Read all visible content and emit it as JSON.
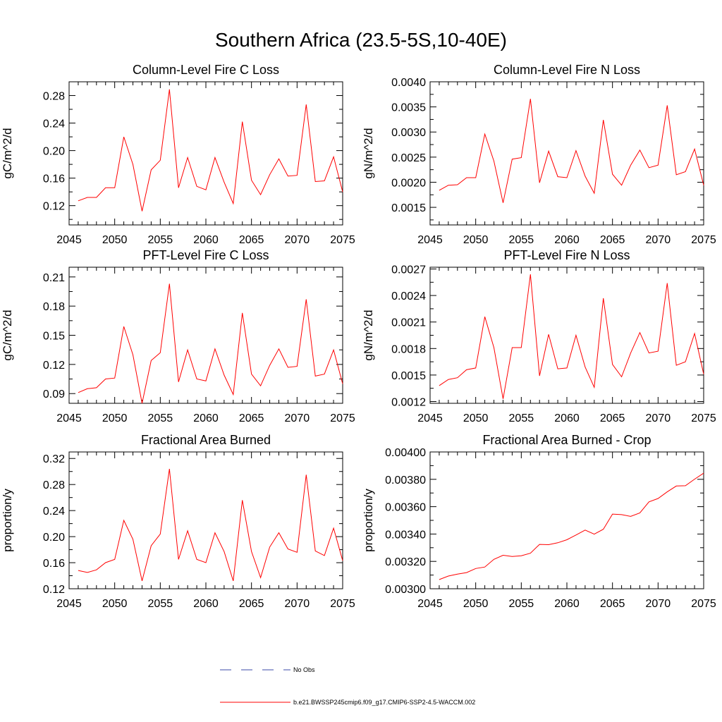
{
  "figure_title": "Southern Africa (23.5-5S,10-40E)",
  "colors": {
    "model": "#ff0000",
    "obs": "#3b4aa8",
    "axis": "#000000"
  },
  "legend": {
    "entries": [
      {
        "label": "No Obs",
        "style": "dashed",
        "color": "#3b4aa8"
      },
      {
        "label": "b.e21.BWSSP245cmip6.f09_g17.CMIP6-SSP2-4.5-WACCM.002",
        "style": "solid",
        "color": "#ff0000"
      }
    ]
  },
  "chart_data": [
    {
      "type": "line",
      "title": "Column-Level Fire C Loss",
      "xlabel": "",
      "ylabel": "gC/m^2/d",
      "xlim": [
        2045,
        2075
      ],
      "ylim": [
        0.092,
        0.3
      ],
      "xticks": [
        "2045",
        "2050",
        "2055",
        "2060",
        "2065",
        "2070",
        "2075"
      ],
      "yticks": [
        "0.12",
        "0.16",
        "0.20",
        "0.24",
        "0.28"
      ],
      "x": [
        2046,
        2047,
        2048,
        2049,
        2050,
        2051,
        2052,
        2053,
        2054,
        2055,
        2056,
        2057,
        2058,
        2059,
        2060,
        2061,
        2062,
        2063,
        2064,
        2065,
        2066,
        2067,
        2068,
        2069,
        2070,
        2071,
        2072,
        2073,
        2074,
        2075
      ],
      "series": [
        {
          "values": [
            0.127,
            0.132,
            0.132,
            0.146,
            0.146,
            0.22,
            0.18,
            0.112,
            0.172,
            0.186,
            0.289,
            0.146,
            0.19,
            0.148,
            0.143,
            0.19,
            0.154,
            0.123,
            0.242,
            0.157,
            0.136,
            0.165,
            0.188,
            0.163,
            0.164,
            0.267,
            0.155,
            0.156,
            0.191,
            0.14
          ]
        }
      ]
    },
    {
      "type": "line",
      "title": "Column-Level Fire N Loss",
      "xlabel": "",
      "ylabel": "gN/m^2/d",
      "xlim": [
        2045,
        2075
      ],
      "ylim": [
        0.00115,
        0.004
      ],
      "xticks": [
        "2045",
        "2050",
        "2055",
        "2060",
        "2065",
        "2070",
        "2075"
      ],
      "yticks": [
        "0.0015",
        "0.0020",
        "0.0025",
        "0.0030",
        "0.0035",
        "0.0040"
      ],
      "x": [
        2046,
        2047,
        2048,
        2049,
        2050,
        2051,
        2052,
        2053,
        2054,
        2055,
        2056,
        2057,
        2058,
        2059,
        2060,
        2061,
        2062,
        2063,
        2064,
        2065,
        2066,
        2067,
        2068,
        2069,
        2070,
        2071,
        2072,
        2073,
        2074,
        2075
      ],
      "series": [
        {
          "values": [
            0.00184,
            0.00194,
            0.00195,
            0.00209,
            0.00209,
            0.00296,
            0.00242,
            0.00159,
            0.00246,
            0.00249,
            0.00366,
            0.00199,
            0.00262,
            0.00211,
            0.00209,
            0.00263,
            0.00212,
            0.00178,
            0.00324,
            0.00216,
            0.00194,
            0.00234,
            0.00264,
            0.00229,
            0.00234,
            0.00353,
            0.00215,
            0.00221,
            0.00266,
            0.00194
          ]
        }
      ]
    },
    {
      "type": "line",
      "title": "PFT-Level Fire C Loss",
      "xlabel": "",
      "ylabel": "gC/m^2/d",
      "xlim": [
        2045,
        2075
      ],
      "ylim": [
        0.08,
        0.22
      ],
      "xticks": [
        "2045",
        "2050",
        "2055",
        "2060",
        "2065",
        "2070",
        "2075"
      ],
      "yticks": [
        "0.09",
        "0.12",
        "0.15",
        "0.18",
        "0.21"
      ],
      "x": [
        2046,
        2047,
        2048,
        2049,
        2050,
        2051,
        2052,
        2053,
        2054,
        2055,
        2056,
        2057,
        2058,
        2059,
        2060,
        2061,
        2062,
        2063,
        2064,
        2065,
        2066,
        2067,
        2068,
        2069,
        2070,
        2071,
        2072,
        2073,
        2074,
        2075
      ],
      "series": [
        {
          "values": [
            0.091,
            0.095,
            0.096,
            0.105,
            0.106,
            0.159,
            0.13,
            0.08,
            0.124,
            0.132,
            0.203,
            0.102,
            0.135,
            0.105,
            0.103,
            0.136,
            0.109,
            0.089,
            0.173,
            0.11,
            0.098,
            0.119,
            0.136,
            0.117,
            0.118,
            0.187,
            0.108,
            0.11,
            0.135,
            0.1
          ]
        }
      ]
    },
    {
      "type": "line",
      "title": "PFT-Level Fire N Loss",
      "xlabel": "",
      "ylabel": "gN/m^2/d",
      "xlim": [
        2045,
        2075
      ],
      "ylim": [
        0.00118,
        0.00272
      ],
      "xticks": [
        "2045",
        "2050",
        "2055",
        "2060",
        "2065",
        "2070",
        "2075"
      ],
      "yticks": [
        "0.0012",
        "0.0015",
        "0.0018",
        "0.0021",
        "0.0024",
        "0.0027"
      ],
      "x": [
        2046,
        2047,
        2048,
        2049,
        2050,
        2051,
        2052,
        2053,
        2054,
        2055,
        2056,
        2057,
        2058,
        2059,
        2060,
        2061,
        2062,
        2063,
        2064,
        2065,
        2066,
        2067,
        2068,
        2069,
        2070,
        2071,
        2072,
        2073,
        2074,
        2075
      ],
      "series": [
        {
          "values": [
            0.00138,
            0.00145,
            0.00147,
            0.00156,
            0.00158,
            0.00216,
            0.00181,
            0.00123,
            0.00181,
            0.00181,
            0.00264,
            0.00149,
            0.00196,
            0.00157,
            0.00158,
            0.00195,
            0.00159,
            0.00136,
            0.00237,
            0.00162,
            0.00148,
            0.00175,
            0.00198,
            0.00175,
            0.00177,
            0.00254,
            0.00161,
            0.00165,
            0.00197,
            0.00151
          ]
        }
      ]
    },
    {
      "type": "line",
      "title": "Fractional Area Burned",
      "xlabel": "",
      "ylabel": "proportion/y",
      "xlim": [
        2045,
        2075
      ],
      "ylim": [
        0.12,
        0.33
      ],
      "xticks": [
        "2045",
        "2050",
        "2055",
        "2060",
        "2065",
        "2070",
        "2075"
      ],
      "yticks": [
        "0.12",
        "0.16",
        "0.20",
        "0.24",
        "0.28",
        "0.32"
      ],
      "x": [
        2046,
        2047,
        2048,
        2049,
        2050,
        2051,
        2052,
        2053,
        2054,
        2055,
        2056,
        2057,
        2058,
        2059,
        2060,
        2061,
        2062,
        2063,
        2064,
        2065,
        2066,
        2067,
        2068,
        2069,
        2070,
        2071,
        2072,
        2073,
        2074,
        2075
      ],
      "series": [
        {
          "values": [
            0.148,
            0.145,
            0.149,
            0.16,
            0.165,
            0.225,
            0.196,
            0.132,
            0.186,
            0.204,
            0.304,
            0.165,
            0.209,
            0.165,
            0.16,
            0.206,
            0.177,
            0.132,
            0.256,
            0.177,
            0.137,
            0.184,
            0.206,
            0.181,
            0.176,
            0.295,
            0.178,
            0.171,
            0.213,
            0.163
          ]
        }
      ]
    },
    {
      "type": "line",
      "title": "Fractional Area Burned - Crop",
      "xlabel": "",
      "ylabel": "proportion/y",
      "xlim": [
        2045,
        2075
      ],
      "ylim": [
        0.003,
        0.004
      ],
      "xticks": [
        "2045",
        "2050",
        "2055",
        "2060",
        "2065",
        "2070",
        "2075"
      ],
      "yticks": [
        "0.00300",
        "0.00320",
        "0.00340",
        "0.00360",
        "0.00380",
        "0.00400"
      ],
      "x": [
        2046,
        2047,
        2048,
        2049,
        2050,
        2051,
        2052,
        2053,
        2054,
        2055,
        2056,
        2057,
        2058,
        2059,
        2060,
        2061,
        2062,
        2063,
        2064,
        2065,
        2066,
        2067,
        2068,
        2069,
        2070,
        2071,
        2072,
        2073,
        2074,
        2075
      ],
      "series": [
        {
          "values": [
            0.003067,
            0.003093,
            0.003107,
            0.003118,
            0.003148,
            0.003159,
            0.003215,
            0.003245,
            0.003236,
            0.003241,
            0.00326,
            0.003324,
            0.003322,
            0.003336,
            0.003358,
            0.003393,
            0.003429,
            0.003399,
            0.003435,
            0.003546,
            0.003542,
            0.003529,
            0.003554,
            0.003635,
            0.00366,
            0.003708,
            0.003751,
            0.003753,
            0.003801,
            0.003845
          ]
        }
      ]
    }
  ]
}
